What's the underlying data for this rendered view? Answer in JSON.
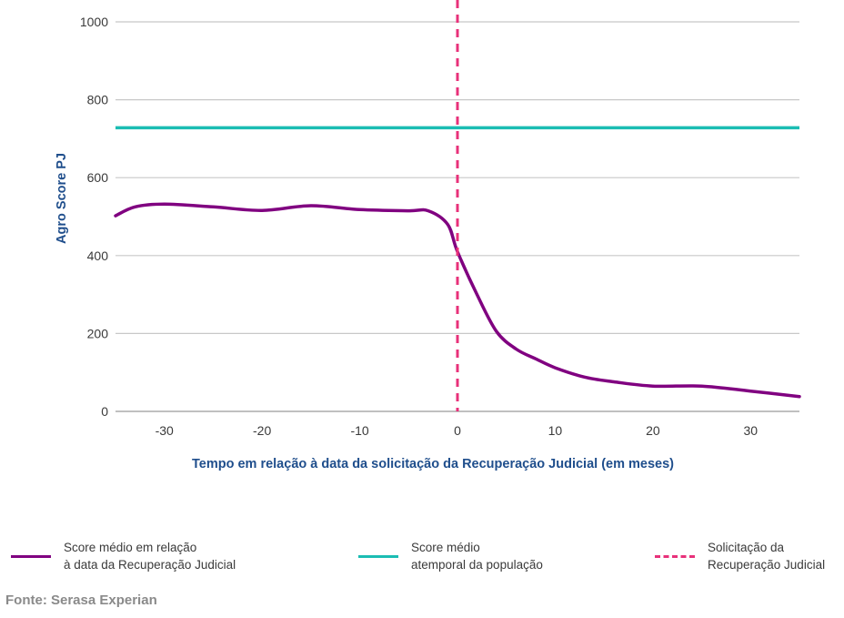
{
  "chart_data": {
    "type": "line",
    "xlabel": "Tempo em relação à data da solicitação da Recuperação Judicial (em meses)",
    "ylabel": "Agro Score PJ",
    "xlim": [
      -35,
      35
    ],
    "ylim": [
      0,
      1000
    ],
    "x_ticks": [
      -30,
      -20,
      -10,
      0,
      10,
      20,
      30
    ],
    "y_ticks": [
      0,
      200,
      400,
      600,
      800,
      1000
    ],
    "grid": "horizontal",
    "legend_position": "bottom",
    "series": [
      {
        "name": "Score médio em relação à data da Recuperação Judicial",
        "color": "#800080",
        "x": [
          -35,
          -33,
          -30,
          -25,
          -20,
          -15,
          -10,
          -5,
          -3,
          -1,
          0,
          2,
          4,
          6,
          8,
          10,
          13,
          16,
          20,
          25,
          30,
          35
        ],
        "y": [
          502,
          525,
          532,
          525,
          516,
          528,
          518,
          515,
          515,
          480,
          410,
          300,
          205,
          160,
          135,
          112,
          88,
          76,
          65,
          65,
          52,
          38
        ]
      },
      {
        "name": "Score médio atemporal da população",
        "color": "#1bbdb3",
        "x": [
          -35,
          35
        ],
        "y": [
          728,
          728
        ]
      },
      {
        "name": "Solicitação da Recuperação Judicial",
        "color": "#e8317a",
        "style": "dashed",
        "x": [
          0,
          0
        ],
        "y": [
          0,
          1000
        ]
      }
    ]
  },
  "legend": [
    {
      "label": "Score médio em relação\nà data da Recuperação Judicial",
      "color": "#800080",
      "style": "solid"
    },
    {
      "label": "Score médio\natemporal da população",
      "color": "#1bbdb3",
      "style": "solid"
    },
    {
      "label": "Solicitação da\nRecuperação Judicial",
      "color": "#e8317a",
      "style": "dashed"
    }
  ],
  "source": "Fonte: Serasa Experian"
}
